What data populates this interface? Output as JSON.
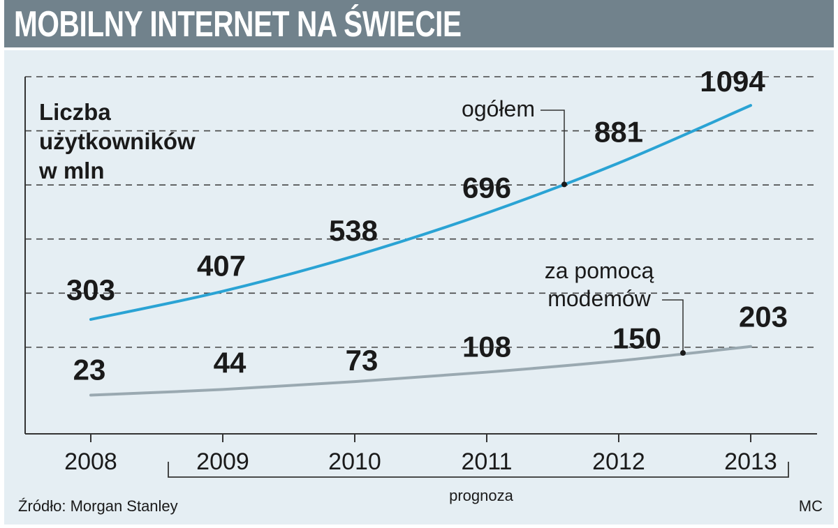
{
  "title": "MOBILNY INTERNET NA ŚWIECIE",
  "unit_label": [
    "Liczba",
    "użytkowników",
    "w mln"
  ],
  "source": "Źródło: Morgan Stanley",
  "author": "MC",
  "forecast_label": "prognoza",
  "colors": {
    "title_bar": "#71828c",
    "panel": "#e5eef3",
    "ogolem_line": "#2aa3d4",
    "modem_line": "#9aa9b1",
    "grid": "#444444"
  },
  "chart_data": {
    "type": "line",
    "title": "MOBILNY INTERNET NA ŚWIECIE",
    "xlabel": "",
    "ylabel": "Liczba użytkowników w mln",
    "categories": [
      "2008",
      "2009",
      "2010",
      "2011",
      "2012",
      "2013"
    ],
    "ylim": [
      -120,
      1200
    ],
    "grid": "horizontal dashed",
    "series": [
      {
        "name": "ogółem",
        "values": [
          303,
          407,
          538,
          696,
          881,
          1094
        ]
      },
      {
        "name": "za pomocą modemów",
        "values": [
          23,
          44,
          73,
          108,
          150,
          203
        ]
      }
    ],
    "forecast_range": [
      "2009",
      "2013"
    ]
  }
}
